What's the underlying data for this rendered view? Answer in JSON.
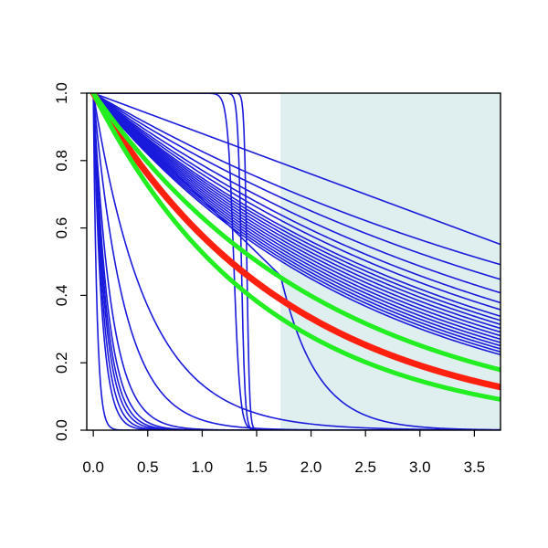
{
  "chart_data": {
    "type": "line",
    "title": "",
    "xlabel": "",
    "ylabel": "",
    "xlim": [
      -0.06,
      3.74
    ],
    "ylim": [
      0.0,
      1.0
    ],
    "x_ticks": [
      "0.0",
      "0.5",
      "1.0",
      "1.5",
      "2.0",
      "2.5",
      "3.0",
      "3.5"
    ],
    "y_ticks": [
      "0.0",
      "0.2",
      "0.4",
      "0.6",
      "0.8",
      "1.0"
    ],
    "grid": false,
    "shaded_region": {
      "x_from": 1.72,
      "x_to": 3.74,
      "color": "#dfeeee"
    },
    "series_groups": [
      {
        "color": "#1a1adc",
        "kind": "exponential",
        "rates": [
          0.19,
          0.215,
          0.24,
          0.26,
          0.275,
          0.29,
          0.3,
          0.31,
          0.32,
          0.33,
          0.34,
          0.35,
          0.36,
          0.37,
          0.38,
          0.39,
          0.4
        ]
      },
      {
        "color": "#1a1adc",
        "kind": "exponential",
        "rates": [
          2.0,
          3.5,
          6.0,
          7.5,
          8.5,
          9.5,
          11.0,
          13.0,
          30.0
        ]
      },
      {
        "color": "#1a1adc",
        "kind": "logistic",
        "midpoints": [
          1.29,
          1.36,
          1.41
        ],
        "steepness": [
          35,
          60,
          80
        ]
      }
    ],
    "highlight_series": [
      {
        "color": "#ff2010",
        "kind": "exponential",
        "rate": 0.55
      },
      {
        "color": "#22ee22",
        "kind": "exponential",
        "rate": 0.46
      },
      {
        "color": "#22ee22",
        "kind": "exponential",
        "rate": 0.64
      }
    ],
    "special_series": [
      {
        "color": "#1a1adc",
        "kind": "piecewise_line_then_exp",
        "slope": 0.315,
        "break_x": 1.72,
        "rate": 3.0
      },
      {
        "color": "#1a1adc",
        "kind": "linear",
        "slope": 0.12
      }
    ]
  }
}
